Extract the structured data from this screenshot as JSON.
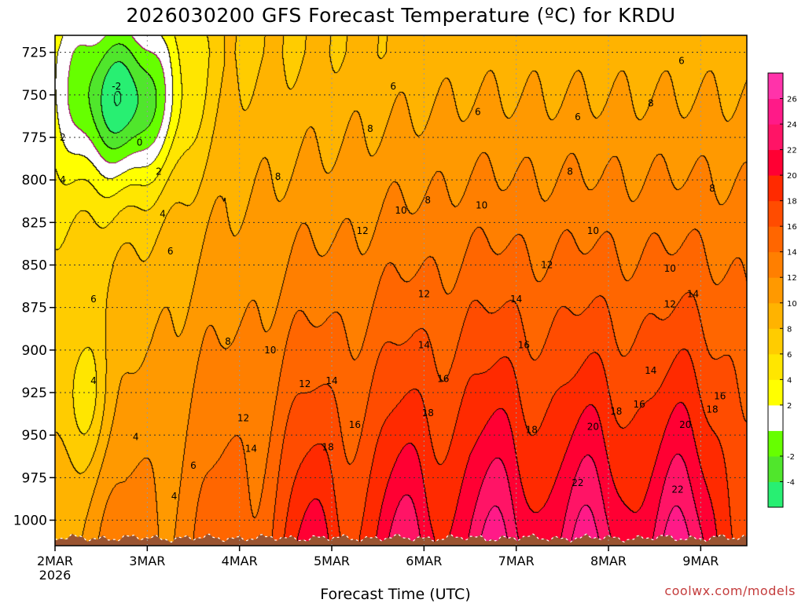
{
  "chart_data": {
    "type": "heatmap",
    "title": "2026030200 GFS Forecast Temperature (ºC) for KRDU",
    "xlabel": "Forecast Time (UTC)",
    "ylabel": "",
    "credit": "coolwx.com/models",
    "colors": {
      "ground": "#9a5431",
      "grid": "#999999"
    },
    "x_unit": "hours since 2026-03-02 00Z",
    "xlim": [
      0,
      180
    ],
    "x_ticks": [
      {
        "hour": 0,
        "label": "2MAR",
        "sublabel": "2026"
      },
      {
        "hour": 24,
        "label": "3MAR"
      },
      {
        "hour": 48,
        "label": "4MAR"
      },
      {
        "hour": 72,
        "label": "5MAR"
      },
      {
        "hour": 96,
        "label": "6MAR"
      },
      {
        "hour": 120,
        "label": "7MAR"
      },
      {
        "hour": 144,
        "label": "8MAR"
      },
      {
        "hour": 168,
        "label": "9MAR"
      }
    ],
    "y_unit": "hPa",
    "ylim": [
      1015,
      715
    ],
    "y_ticks": [
      {
        "p": 725,
        "label": "725"
      },
      {
        "p": 750,
        "label": "750"
      },
      {
        "p": 775,
        "label": "775"
      },
      {
        "p": 800,
        "label": "800"
      },
      {
        "p": 825,
        "label": "825"
      },
      {
        "p": 850,
        "label": "850"
      },
      {
        "p": 875,
        "label": "875"
      },
      {
        "p": 900,
        "label": "900"
      },
      {
        "p": 925,
        "label": "925"
      },
      {
        "p": 950,
        "label": "950"
      },
      {
        "p": 975,
        "label": "975"
      },
      {
        "p": 1000,
        "label": "1000"
      }
    ],
    "colorbar": {
      "bins": [
        {
          "from": -6,
          "to": -4,
          "color": "#28ef72"
        },
        {
          "from": -4,
          "to": -2,
          "color": "#50e62c"
        },
        {
          "from": -2,
          "to": 0,
          "color": "#66ff00"
        },
        {
          "from": 0,
          "to": 2,
          "color": "#ffffff"
        },
        {
          "from": 2,
          "to": 4,
          "color": "#ffff00"
        },
        {
          "from": 4,
          "to": 6,
          "color": "#ffe600"
        },
        {
          "from": 6,
          "to": 8,
          "color": "#ffcc00"
        },
        {
          "from": 8,
          "to": 10,
          "color": "#ffb300"
        },
        {
          "from": 10,
          "to": 12,
          "color": "#ff9900"
        },
        {
          "from": 12,
          "to": 14,
          "color": "#ff7f00"
        },
        {
          "from": 14,
          "to": 16,
          "color": "#ff6600"
        },
        {
          "from": 16,
          "to": 18,
          "color": "#ff4c00"
        },
        {
          "from": 18,
          "to": 20,
          "color": "#ff2a00"
        },
        {
          "from": 20,
          "to": 22,
          "color": "#ff0033"
        },
        {
          "from": 22,
          "to": 24,
          "color": "#ff1466"
        },
        {
          "from": 24,
          "to": 26,
          "color": "#ff1a88"
        },
        {
          "from": 26,
          "to": 28,
          "color": "#ff33aa"
        }
      ],
      "tick_labels": [
        "26",
        "24",
        "22",
        "20",
        "18",
        "16",
        "14",
        "12",
        "10",
        "8",
        "6",
        "4",
        "2",
        "-2",
        "-4"
      ]
    },
    "temperature_field": {
      "model": "smooth profile: T(t,p) = base(p) + diurnal(p) + warm_trend(p,t) - cold_air(t,p) - wedge(t,p)",
      "diurnal_peaks_hour": [
        18,
        42,
        66,
        90,
        114,
        138,
        162
      ],
      "surface_highs_c": [
        5,
        5,
        12,
        23,
        22,
        25,
        24,
        23
      ],
      "cold_air_band_hours": [
        0,
        44
      ],
      "minimum_c": -4
    },
    "contour_labels": [
      {
        "text": "-2",
        "hour": 16,
        "p": 745
      },
      {
        "text": "0",
        "hour": 22,
        "p": 778
      },
      {
        "text": "2",
        "hour": 2,
        "p": 775
      },
      {
        "text": "2",
        "hour": 27,
        "p": 795
      },
      {
        "text": "4",
        "hour": 2,
        "p": 800
      },
      {
        "text": "4",
        "hour": 28,
        "p": 820
      },
      {
        "text": "6",
        "hour": 30,
        "p": 842
      },
      {
        "text": "6",
        "hour": 88,
        "p": 745
      },
      {
        "text": "6",
        "hour": 110,
        "p": 760
      },
      {
        "text": "6",
        "hour": 136,
        "p": 763
      },
      {
        "text": "6",
        "hour": 163,
        "p": 730
      },
      {
        "text": "8",
        "hour": 58,
        "p": 798
      },
      {
        "text": "8",
        "hour": 82,
        "p": 770
      },
      {
        "text": "8",
        "hour": 97,
        "p": 812
      },
      {
        "text": "8",
        "hour": 134,
        "p": 795
      },
      {
        "text": "8",
        "hour": 155,
        "p": 755
      },
      {
        "text": "8",
        "hour": 171,
        "p": 805
      },
      {
        "text": "8",
        "hour": 45,
        "p": 895
      },
      {
        "text": "10",
        "hour": 90,
        "p": 818
      },
      {
        "text": "10",
        "hour": 111,
        "p": 815
      },
      {
        "text": "10",
        "hour": 140,
        "p": 830
      },
      {
        "text": "10",
        "hour": 160,
        "p": 852
      },
      {
        "text": "10",
        "hour": 56,
        "p": 900
      },
      {
        "text": "12",
        "hour": 80,
        "p": 830
      },
      {
        "text": "12",
        "hour": 96,
        "p": 867
      },
      {
        "text": "12",
        "hour": 128,
        "p": 850
      },
      {
        "text": "12",
        "hour": 160,
        "p": 873
      },
      {
        "text": "12",
        "hour": 65,
        "p": 920
      },
      {
        "text": "12",
        "hour": 49,
        "p": 940
      },
      {
        "text": "14",
        "hour": 120,
        "p": 870
      },
      {
        "text": "14",
        "hour": 96,
        "p": 897
      },
      {
        "text": "14",
        "hour": 155,
        "p": 912
      },
      {
        "text": "14",
        "hour": 166,
        "p": 867
      },
      {
        "text": "14",
        "hour": 72,
        "p": 918
      },
      {
        "text": "14",
        "hour": 51,
        "p": 958
      },
      {
        "text": "16",
        "hour": 122,
        "p": 897
      },
      {
        "text": "16",
        "hour": 101,
        "p": 917
      },
      {
        "text": "16",
        "hour": 152,
        "p": 932
      },
      {
        "text": "16",
        "hour": 173,
        "p": 927
      },
      {
        "text": "16",
        "hour": 78,
        "p": 944
      },
      {
        "text": "18",
        "hour": 97,
        "p": 937
      },
      {
        "text": "18",
        "hour": 124,
        "p": 947
      },
      {
        "text": "18",
        "hour": 146,
        "p": 936
      },
      {
        "text": "18",
        "hour": 171,
        "p": 935
      },
      {
        "text": "18",
        "hour": 71,
        "p": 957
      },
      {
        "text": "20",
        "hour": 140,
        "p": 945
      },
      {
        "text": "20",
        "hour": 164,
        "p": 944
      },
      {
        "text": "22",
        "hour": 136,
        "p": 978
      },
      {
        "text": "22",
        "hour": 162,
        "p": 982
      },
      {
        "text": "6",
        "hour": 36,
        "p": 968
      },
      {
        "text": "6",
        "hour": 10,
        "p": 870
      },
      {
        "text": "4",
        "hour": 10,
        "p": 918
      },
      {
        "text": "4",
        "hour": 21,
        "p": 951
      },
      {
        "text": "4",
        "hour": 31,
        "p": 986
      }
    ]
  }
}
